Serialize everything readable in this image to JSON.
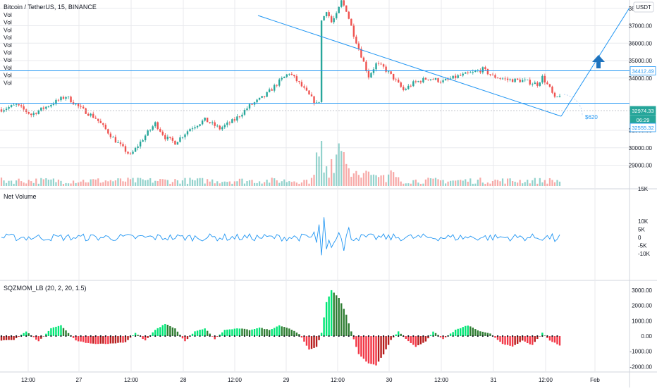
{
  "header": {
    "symbol_title": "Bitcoin / TetherUS, 15, BINANCE",
    "vol_labels": [
      "Vol",
      "Vol",
      "Vol",
      "Vol",
      "Vol",
      "Vol",
      "Vol",
      "Vol",
      "Vol",
      "Vol"
    ],
    "currency": "USDT"
  },
  "colors": {
    "up": "#26a69a",
    "down": "#ef5350",
    "line": "#2196f3",
    "arrow": "#1e73be",
    "mom_pos": "#00e676",
    "mom_neg": "#f23645",
    "grid": "#e8eaee",
    "axis_text": "#131722"
  },
  "chart_data": [
    {
      "type": "candlestick",
      "title": "Bitcoin / TetherUS, 15, BINANCE",
      "x_tick_labels": [
        "12:00",
        "27",
        "12:00",
        "28",
        "12:00",
        "29",
        "12:00",
        "30",
        "12:00",
        "31",
        "12:00",
        "Feb"
      ],
      "y_tick_labels": [
        "38000.00",
        "37000.00",
        "36000.00",
        "35000.00",
        "34000.00",
        "31000.00",
        "30000.00",
        "29000.00"
      ],
      "ylim": [
        28400,
        38900
      ],
      "y_unit": "USDT",
      "price_tags": [
        {
          "label": "34412.49",
          "value": 34412.49,
          "style": "line"
        },
        {
          "label": "32974.33",
          "value": 32974.33,
          "style": "price"
        },
        {
          "label": "06:29",
          "value": 32760,
          "style": "timer"
        },
        {
          "label": "32555.32",
          "value": 32555.32,
          "style": "line"
        }
      ],
      "horizontal_levels": [
        34412.49,
        32555.32
      ],
      "volume_axis_label": "15K",
      "annotation": "$620",
      "anchors": [
        {
          "t": 0,
          "p": 32200
        },
        {
          "t": 6,
          "p": 32450
        },
        {
          "t": 12,
          "p": 31900
        },
        {
          "t": 20,
          "p": 32500
        },
        {
          "t": 26,
          "p": 32950
        },
        {
          "t": 32,
          "p": 32250
        },
        {
          "t": 38,
          "p": 31700
        },
        {
          "t": 46,
          "p": 30400
        },
        {
          "t": 52,
          "p": 29550
        },
        {
          "t": 58,
          "p": 30700
        },
        {
          "t": 62,
          "p": 31400
        },
        {
          "t": 66,
          "p": 30600
        },
        {
          "t": 70,
          "p": 30300
        },
        {
          "t": 76,
          "p": 31100
        },
        {
          "t": 82,
          "p": 31600
        },
        {
          "t": 88,
          "p": 31100
        },
        {
          "t": 94,
          "p": 31600
        },
        {
          "t": 100,
          "p": 32400
        },
        {
          "t": 106,
          "p": 32950
        },
        {
          "t": 112,
          "p": 33800
        },
        {
          "t": 116,
          "p": 34300
        },
        {
          "t": 120,
          "p": 33700
        },
        {
          "t": 124,
          "p": 33000
        },
        {
          "t": 127,
          "p": 32500
        },
        {
          "t": 128,
          "p": 32700
        },
        {
          "t": 129,
          "p": 37200
        },
        {
          "t": 131,
          "p": 37900
        },
        {
          "t": 133,
          "p": 37200
        },
        {
          "t": 135,
          "p": 37600
        },
        {
          "t": 137,
          "p": 38400
        },
        {
          "t": 139,
          "p": 37900
        },
        {
          "t": 142,
          "p": 36500
        },
        {
          "t": 146,
          "p": 34900
        },
        {
          "t": 148,
          "p": 34100
        },
        {
          "t": 151,
          "p": 34800
        },
        {
          "t": 154,
          "p": 34600
        },
        {
          "t": 158,
          "p": 34000
        },
        {
          "t": 162,
          "p": 33300
        },
        {
          "t": 166,
          "p": 33700
        },
        {
          "t": 172,
          "p": 34000
        },
        {
          "t": 178,
          "p": 33800
        },
        {
          "t": 184,
          "p": 34100
        },
        {
          "t": 190,
          "p": 34300
        },
        {
          "t": 194,
          "p": 34500
        },
        {
          "t": 198,
          "p": 34100
        },
        {
          "t": 204,
          "p": 33900
        },
        {
          "t": 210,
          "p": 33850
        },
        {
          "t": 216,
          "p": 33650
        },
        {
          "t": 218,
          "p": 34050
        },
        {
          "t": 221,
          "p": 33400
        },
        {
          "t": 223,
          "p": 32800
        },
        {
          "t": 225,
          "p": 32974
        }
      ]
    },
    {
      "type": "line",
      "title": "Net Volume",
      "y_tick_labels": [
        "10K",
        "5K",
        "0",
        "-5K",
        "-10K"
      ],
      "ylim": [
        -12000,
        14000
      ]
    },
    {
      "type": "histogram",
      "title": "SQZMOM_LB (20, 2, 20, 1.5)",
      "y_tick_labels": [
        "3000.00",
        "2000.00",
        "1000.00",
        "0.00",
        "-1000.00",
        "-2000.00"
      ],
      "ylim": [
        -2250,
        3250
      ],
      "hump_anchors": [
        {
          "t": 0,
          "v": -300
        },
        {
          "t": 5,
          "v": -250
        },
        {
          "t": 10,
          "v": 300
        },
        {
          "t": 15,
          "v": -350
        },
        {
          "t": 20,
          "v": 500
        },
        {
          "t": 24,
          "v": 700
        },
        {
          "t": 30,
          "v": -300
        },
        {
          "t": 36,
          "v": -500
        },
        {
          "t": 44,
          "v": -500
        },
        {
          "t": 50,
          "v": -400
        },
        {
          "t": 54,
          "v": 200
        },
        {
          "t": 58,
          "v": -300
        },
        {
          "t": 62,
          "v": 400
        },
        {
          "t": 66,
          "v": 800
        },
        {
          "t": 70,
          "v": 500
        },
        {
          "t": 74,
          "v": -350
        },
        {
          "t": 78,
          "v": 300
        },
        {
          "t": 82,
          "v": 500
        },
        {
          "t": 86,
          "v": -200
        },
        {
          "t": 90,
          "v": 400
        },
        {
          "t": 96,
          "v": 500
        },
        {
          "t": 100,
          "v": 400
        },
        {
          "t": 104,
          "v": 550
        },
        {
          "t": 108,
          "v": 400
        },
        {
          "t": 112,
          "v": 700
        },
        {
          "t": 116,
          "v": 500
        },
        {
          "t": 120,
          "v": 150
        },
        {
          "t": 124,
          "v": -900
        },
        {
          "t": 127,
          "v": -700
        },
        {
          "t": 129,
          "v": 200
        },
        {
          "t": 131,
          "v": 2200
        },
        {
          "t": 133,
          "v": 3000
        },
        {
          "t": 136,
          "v": 2500
        },
        {
          "t": 139,
          "v": 1400
        },
        {
          "t": 141,
          "v": 300
        },
        {
          "t": 144,
          "v": -1200
        },
        {
          "t": 148,
          "v": -1800
        },
        {
          "t": 151,
          "v": -1900
        },
        {
          "t": 154,
          "v": -1200
        },
        {
          "t": 157,
          "v": -250
        },
        {
          "t": 160,
          "v": 300
        },
        {
          "t": 163,
          "v": -200
        },
        {
          "t": 167,
          "v": -700
        },
        {
          "t": 171,
          "v": -350
        },
        {
          "t": 174,
          "v": 300
        },
        {
          "t": 178,
          "v": -200
        },
        {
          "t": 183,
          "v": 400
        },
        {
          "t": 188,
          "v": 700
        },
        {
          "t": 193,
          "v": 300
        },
        {
          "t": 197,
          "v": 150
        },
        {
          "t": 202,
          "v": -500
        },
        {
          "t": 206,
          "v": -700
        },
        {
          "t": 210,
          "v": -300
        },
        {
          "t": 214,
          "v": -600
        },
        {
          "t": 218,
          "v": 200
        },
        {
          "t": 221,
          "v": -300
        },
        {
          "t": 225,
          "v": -600
        }
      ]
    }
  ]
}
